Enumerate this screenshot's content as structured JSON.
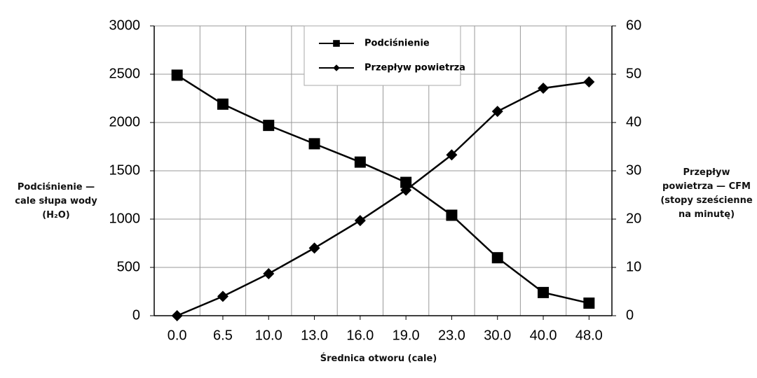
{
  "chart_data": {
    "type": "line",
    "x_label": "Średnica otworu (cale)",
    "y_label": "Podciśnienie — cale słupa wody (H₂O)",
    "y2_label": "Przepływ powietrza — CFM (stopy sześcienne na minutę)",
    "categories": [
      "0.0",
      "6.5",
      "10.0",
      "13.0",
      "16.0",
      "19.0",
      "23.0",
      "30.0",
      "40.0",
      "48.0"
    ],
    "series": [
      {
        "name": "Podciśnienie",
        "color": "#000000",
        "marker": "square",
        "values": [
          2490,
          2190,
          1970,
          1780,
          1590,
          1380,
          1040,
          600,
          240,
          130
        ]
      },
      {
        "name": "Przepływ powietrza",
        "color": "#000000",
        "marker": "diamond",
        "axis": "y2",
        "values": [
          0,
          4,
          8.7,
          14,
          19.7,
          26,
          33.3,
          42.3,
          47.1,
          48.4
        ]
      }
    ],
    "ylim": [
      0,
      3000
    ],
    "yticks": [
      0,
      500,
      1000,
      1500,
      2000,
      2500,
      3000
    ],
    "y2lim": [
      0,
      60
    ],
    "y2ticks": [
      0,
      10,
      20,
      30,
      40,
      50,
      60
    ],
    "grid": true
  }
}
